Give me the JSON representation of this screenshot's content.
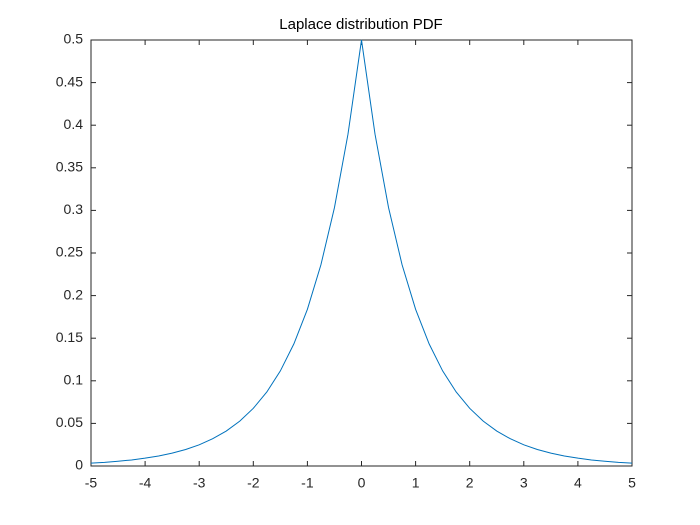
{
  "chart_data": {
    "type": "line",
    "title": "Laplace distribution PDF",
    "x": [
      -5,
      -4.75,
      -4.5,
      -4.25,
      -4,
      -3.75,
      -3.5,
      -3.25,
      -3,
      -2.75,
      -2.5,
      -2.25,
      -2,
      -1.75,
      -1.5,
      -1.25,
      -1,
      -0.75,
      -0.5,
      -0.25,
      0,
      0.25,
      0.5,
      0.75,
      1,
      1.25,
      1.5,
      1.75,
      2,
      2.25,
      2.5,
      2.75,
      3,
      3.25,
      3.5,
      3.75,
      4,
      4.25,
      4.5,
      4.75,
      5
    ],
    "series": [
      {
        "color": "#0072bd",
        "values": [
          0.0034,
          0.0043,
          0.0056,
          0.0071,
          0.0092,
          0.0118,
          0.0151,
          0.0194,
          0.0249,
          0.032,
          0.041,
          0.0527,
          0.0677,
          0.0869,
          0.1116,
          0.1433,
          0.1839,
          0.2362,
          0.3033,
          0.3894,
          0.5,
          0.3894,
          0.3033,
          0.2362,
          0.1839,
          0.1433,
          0.1116,
          0.0869,
          0.0677,
          0.0527,
          0.041,
          0.032,
          0.0249,
          0.0194,
          0.0151,
          0.0118,
          0.0092,
          0.0071,
          0.0056,
          0.0043,
          0.0034
        ]
      }
    ],
    "xlim": [
      -5,
      5
    ],
    "xticks": [
      -5,
      -4,
      -3,
      -2,
      -1,
      0,
      1,
      2,
      3,
      4,
      5
    ],
    "ylim": [
      0,
      0.5
    ],
    "yticks": [
      0,
      0.05,
      0.1,
      0.15,
      0.2,
      0.25,
      0.3,
      0.35,
      0.4,
      0.45,
      0.5
    ]
  }
}
